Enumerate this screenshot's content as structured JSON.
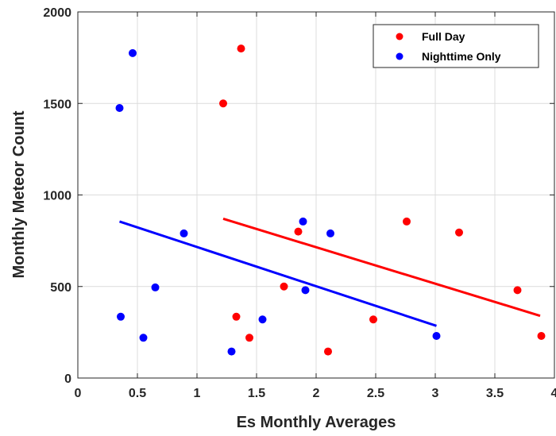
{
  "chart_data": {
    "type": "scatter",
    "title": "",
    "xlabel": "Es Monthly Averages",
    "ylabel": "Monthly Meteor Count",
    "xlim": [
      0,
      4
    ],
    "ylim": [
      0,
      2000
    ],
    "xticks": [
      0,
      0.5,
      1,
      1.5,
      2,
      2.5,
      3,
      3.5,
      4
    ],
    "xtick_labels": [
      "0",
      "0.5",
      "1",
      "1.5",
      "2",
      "2.5",
      "3",
      "3.5",
      "4"
    ],
    "yticks": [
      0,
      500,
      1000,
      1500,
      2000
    ],
    "ytick_labels": [
      "0",
      "500",
      "1000",
      "1500",
      "2000"
    ],
    "grid": true,
    "legend_position": "top-right",
    "series": [
      {
        "name": "Full Day",
        "color": "#ff0000",
        "points": [
          {
            "x": 1.22,
            "y": 1500
          },
          {
            "x": 1.37,
            "y": 1800
          },
          {
            "x": 1.33,
            "y": 335
          },
          {
            "x": 1.44,
            "y": 220
          },
          {
            "x": 1.73,
            "y": 500
          },
          {
            "x": 1.85,
            "y": 800
          },
          {
            "x": 2.1,
            "y": 145
          },
          {
            "x": 2.48,
            "y": 320
          },
          {
            "x": 2.76,
            "y": 855
          },
          {
            "x": 3.2,
            "y": 795
          },
          {
            "x": 3.69,
            "y": 480
          },
          {
            "x": 3.89,
            "y": 230
          }
        ],
        "trend": {
          "x1": 1.22,
          "y1": 870,
          "x2": 3.88,
          "y2": 340
        }
      },
      {
        "name": "Nighttime Only",
        "color": "#0000ff",
        "points": [
          {
            "x": 0.35,
            "y": 1475
          },
          {
            "x": 0.46,
            "y": 1775
          },
          {
            "x": 0.36,
            "y": 335
          },
          {
            "x": 0.55,
            "y": 220
          },
          {
            "x": 0.65,
            "y": 495
          },
          {
            "x": 0.89,
            "y": 790
          },
          {
            "x": 1.29,
            "y": 145
          },
          {
            "x": 1.55,
            "y": 320
          },
          {
            "x": 1.89,
            "y": 855
          },
          {
            "x": 1.91,
            "y": 480
          },
          {
            "x": 2.12,
            "y": 790
          },
          {
            "x": 3.01,
            "y": 230
          }
        ],
        "trend": {
          "x1": 0.35,
          "y1": 855,
          "x2": 3.01,
          "y2": 285
        }
      }
    ]
  }
}
